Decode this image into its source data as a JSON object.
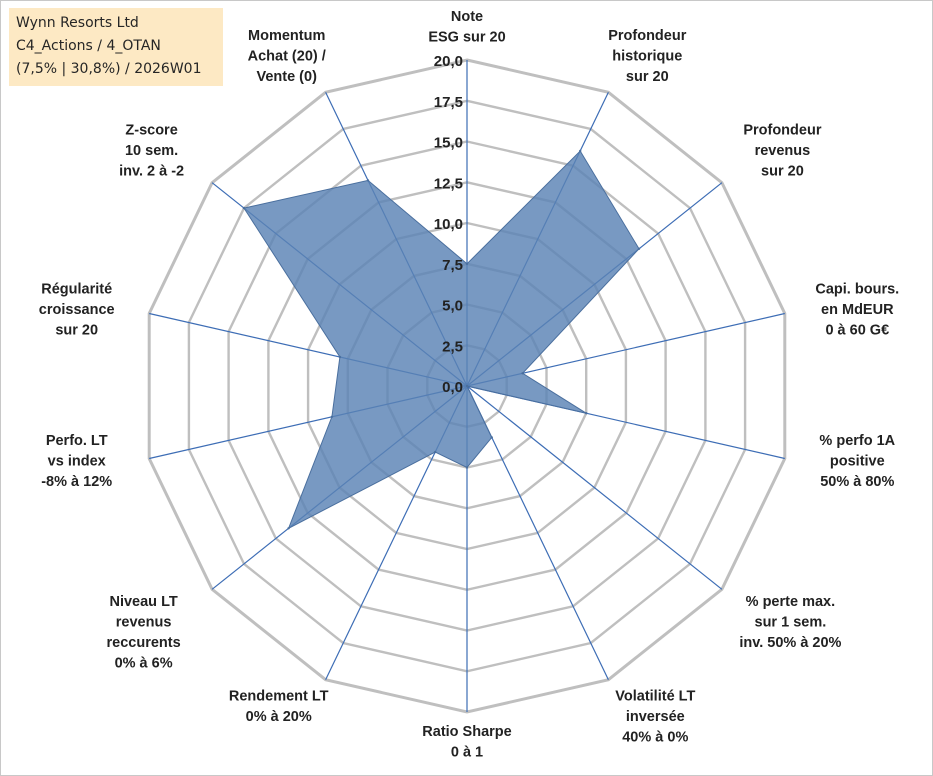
{
  "info_box": {
    "line1": "Wynn Resorts Ltd",
    "line2": "C4_Actions / 4_OTAN",
    "line3": "(7,5% | 30,8%) / 2026W01"
  },
  "chart_data": {
    "type": "radar",
    "title": "",
    "rmin": 0,
    "rmax": 20,
    "tick_step": 2.5,
    "tick_labels": [
      "0,0",
      "2,5",
      "5,0",
      "7,5",
      "10,0",
      "12,5",
      "15,0",
      "17,5",
      "20,0"
    ],
    "grid": true,
    "legend": "none",
    "categories": [
      [
        "Note",
        "ESG sur 20"
      ],
      [
        "Profondeur",
        "historique",
        "sur 20"
      ],
      [
        "Profondeur",
        "revenus",
        "sur 20"
      ],
      [
        "Capi. bours.",
        "en MdEUR",
        "0 à 60 G€"
      ],
      [
        "% perfo 1A",
        "positive",
        "50% à 80%"
      ],
      [
        "% perte max.",
        "sur 1 sem.",
        "inv. 50% à 20%"
      ],
      [
        "Volatilité LT",
        "inversée",
        "40% à 0%"
      ],
      [
        "Ratio Sharpe",
        "0 à 1"
      ],
      [
        "Rendement LT",
        "0% à 20%"
      ],
      [
        "Niveau LT",
        "revenus",
        "reccurents",
        "0% à 6%"
      ],
      [
        "Perfo. LT",
        "vs index",
        "-8% à 12%"
      ],
      [
        "Régularité",
        "croissance",
        "sur 20"
      ],
      [
        "Z-score",
        "10 sem.",
        "inv. 2 à -2"
      ],
      [
        "Momentum",
        "Achat (20) /",
        "Vente (0)"
      ]
    ],
    "series": [
      {
        "values": [
          7.5,
          16.0,
          13.5,
          3.5,
          7.5,
          0.0,
          3.5,
          5.0,
          4.5,
          14.0,
          8.5,
          8.0,
          17.5,
          14.0
        ],
        "fill": "#5a83b5",
        "fill_opacity": 0.82,
        "stroke": "#4a6f9e"
      }
    ],
    "colors": {
      "ring": "#bfbfbf",
      "spoke": "#3d6db5"
    }
  }
}
